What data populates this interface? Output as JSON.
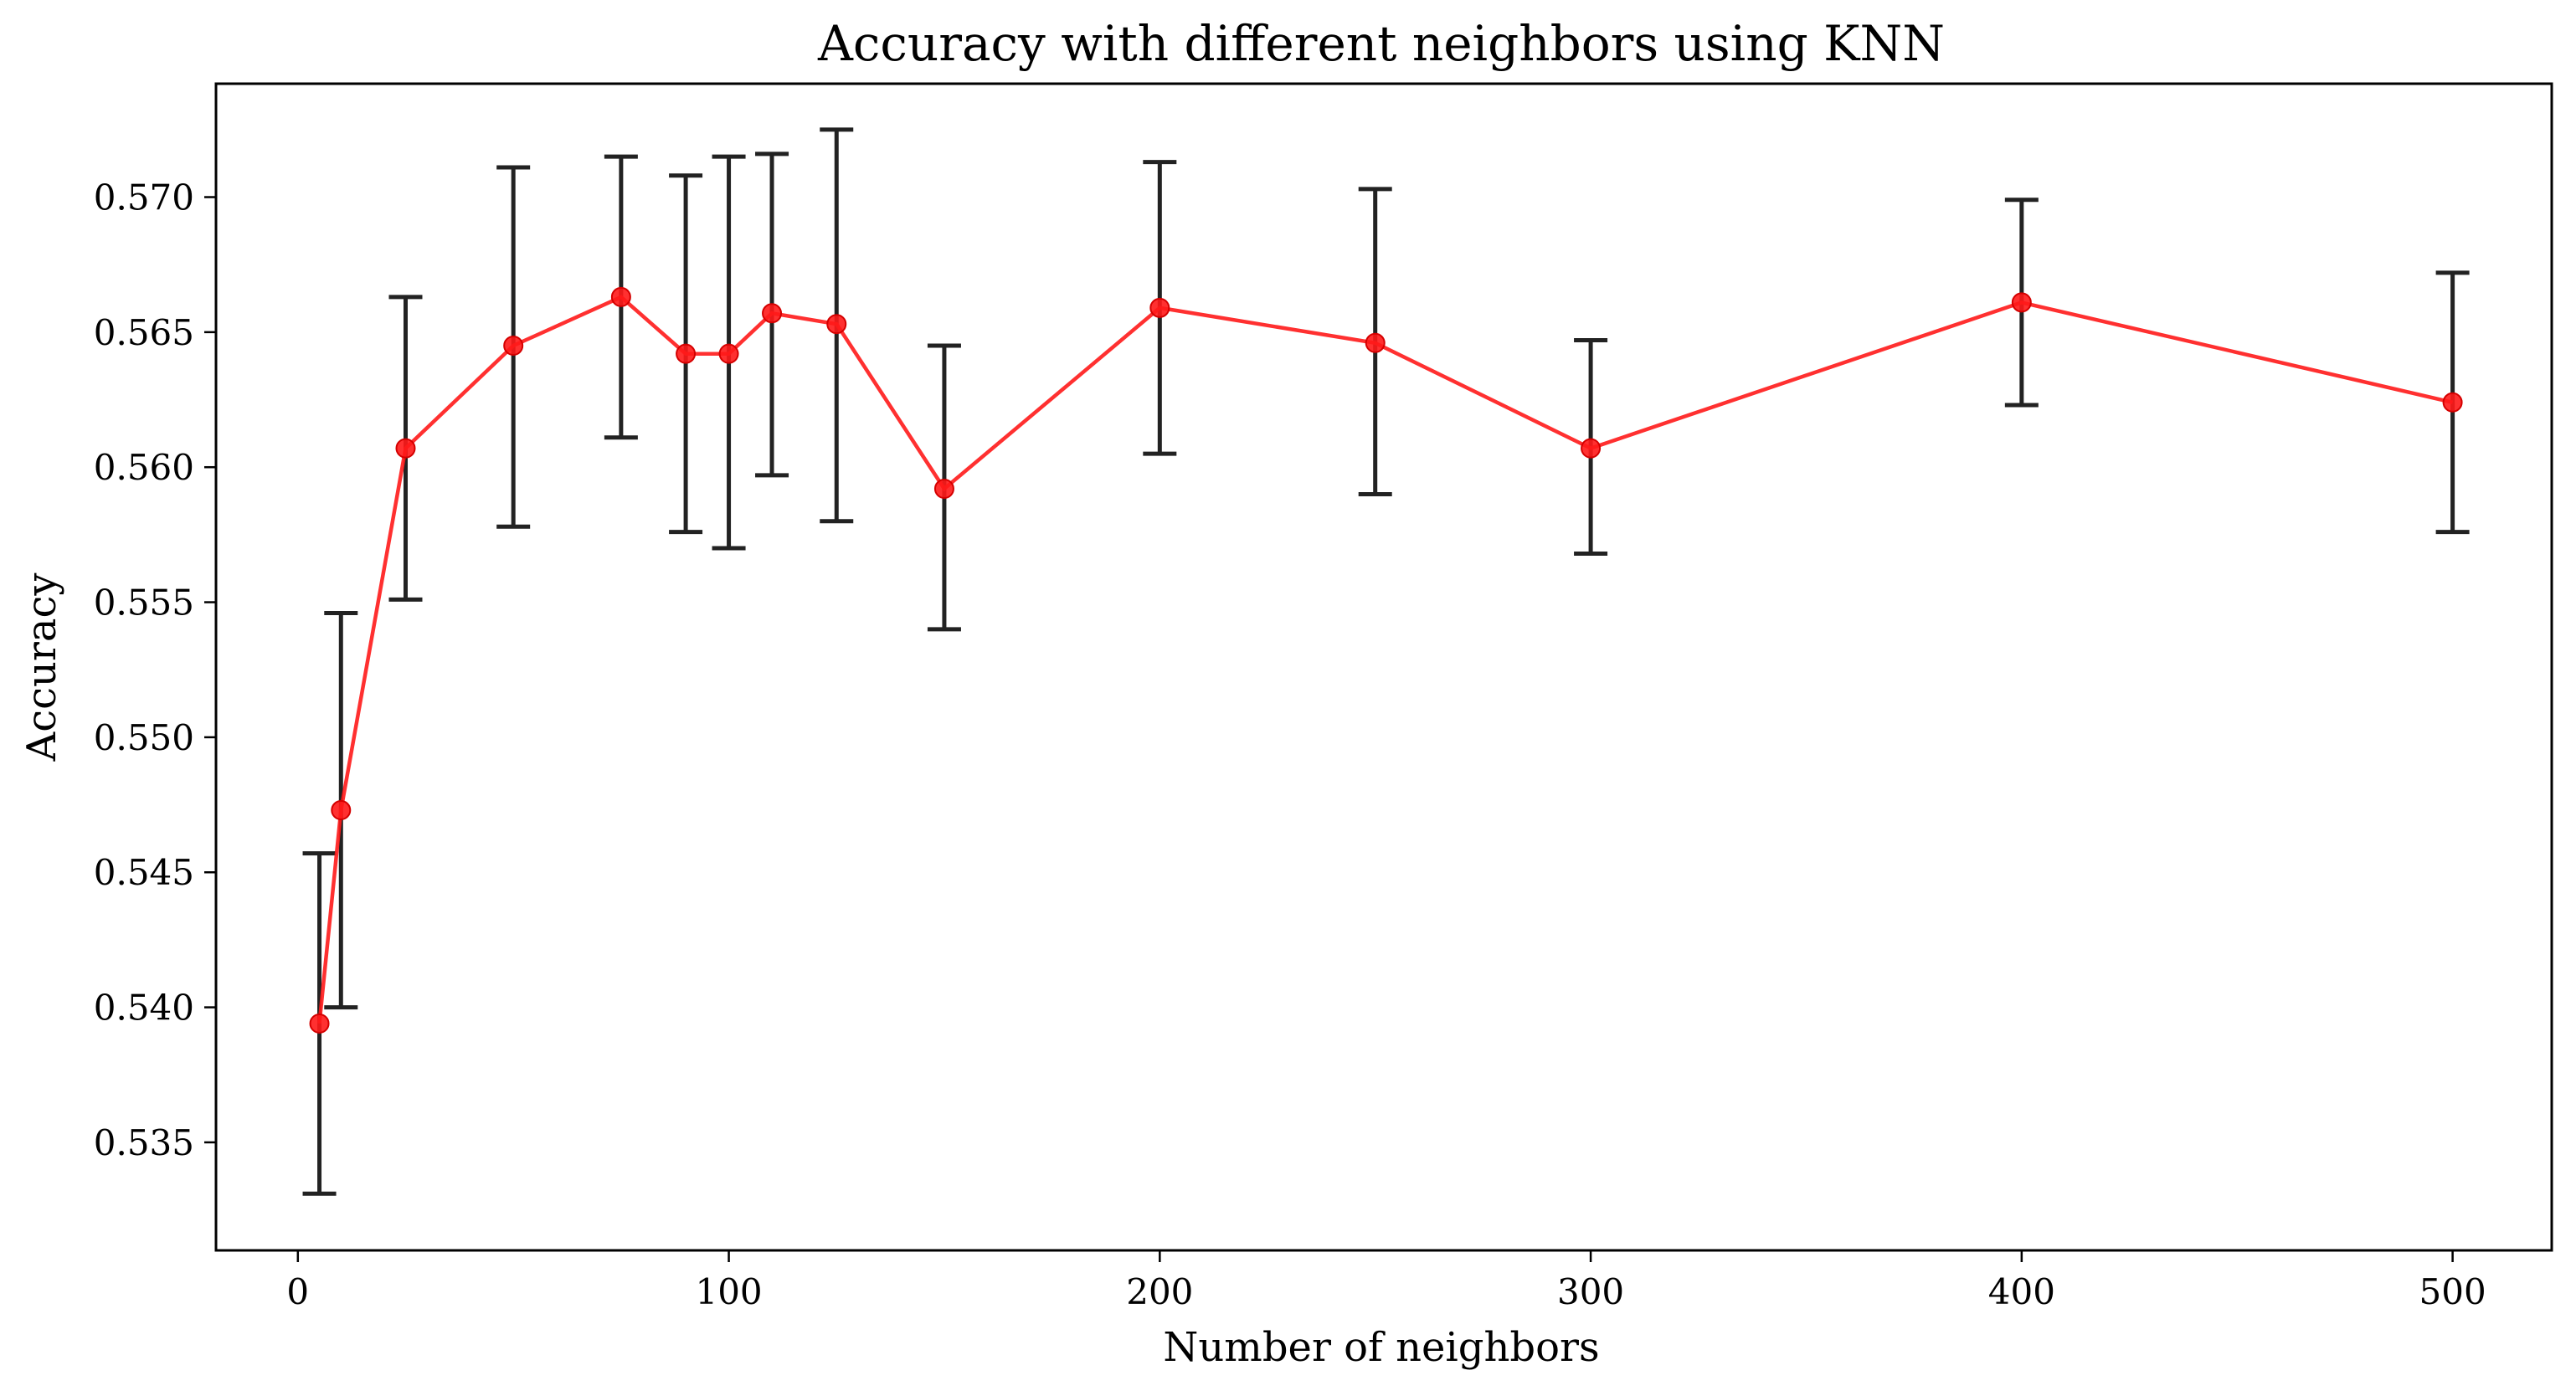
{
  "chart_data": {
    "type": "line",
    "title": "Accuracy with different neighbors using KNN",
    "xlabel": "Number of neighbors",
    "ylabel": "Accuracy",
    "xlim": [
      -19,
      523
    ],
    "ylim": [
      0.531,
      0.5742
    ],
    "xticks": [
      0,
      100,
      200,
      300,
      400,
      500
    ],
    "yticks": [
      0.535,
      0.54,
      0.545,
      0.55,
      0.555,
      0.56,
      0.565,
      0.57
    ],
    "xtick_labels": [
      "0",
      "100",
      "200",
      "300",
      "400",
      "500"
    ],
    "ytick_labels": [
      "0.535",
      "0.540",
      "0.545",
      "0.550",
      "0.555",
      "0.560",
      "0.565",
      "0.570"
    ],
    "grid": false,
    "line_color": "#ff1a1a",
    "errorbar_color": "#222222",
    "x": [
      5,
      10,
      25,
      50,
      75,
      90,
      100,
      110,
      125,
      150,
      200,
      250,
      300,
      400,
      500
    ],
    "y": [
      0.5394,
      0.5473,
      0.5607,
      0.5645,
      0.5663,
      0.5642,
      0.5642,
      0.5657,
      0.5653,
      0.5592,
      0.5659,
      0.5646,
      0.5607,
      0.5661,
      0.5624
    ],
    "y_lower": [
      0.5331,
      0.54,
      0.5551,
      0.5578,
      0.5611,
      0.5576,
      0.557,
      0.5597,
      0.558,
      0.554,
      0.5605,
      0.559,
      0.5568,
      0.5623,
      0.5576
    ],
    "y_upper": [
      0.5457,
      0.5546,
      0.5663,
      0.5711,
      0.5715,
      0.5708,
      0.5715,
      0.5716,
      0.5725,
      0.5645,
      0.5713,
      0.5703,
      0.5647,
      0.5699,
      0.5672
    ]
  }
}
